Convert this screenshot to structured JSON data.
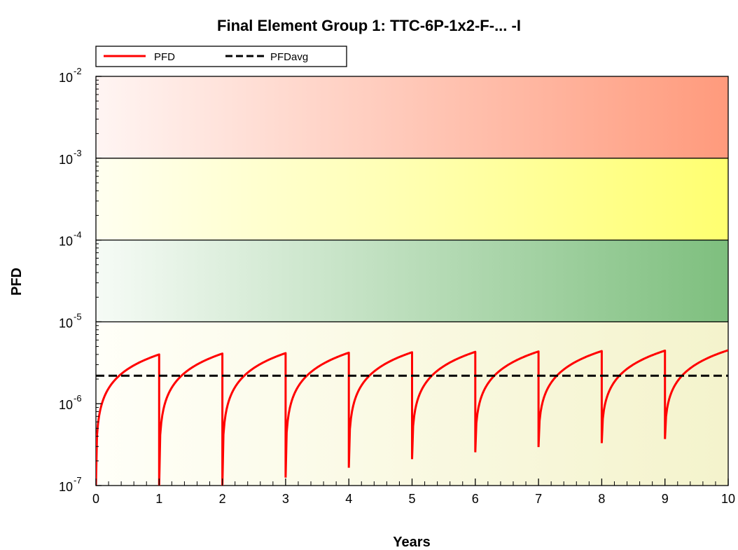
{
  "chart_data": {
    "type": "line",
    "title": "Final Element Group 1: TTC-6P-1x2-F-... -I",
    "xlabel": "Years",
    "ylabel": "PFD",
    "x_scale": "linear",
    "y_scale": "log",
    "xlim": [
      0,
      10
    ],
    "ylim": [
      1e-07,
      0.01
    ],
    "x_ticks": [
      "0",
      "1",
      "2",
      "3",
      "4",
      "5",
      "6",
      "7",
      "8",
      "9",
      "10"
    ],
    "y_ticks": [
      {
        "base": "10",
        "exp": "-7"
      },
      {
        "base": "10",
        "exp": "-6"
      },
      {
        "base": "10",
        "exp": "-5"
      },
      {
        "base": "10",
        "exp": "-4"
      },
      {
        "base": "10",
        "exp": "-3"
      },
      {
        "base": "10",
        "exp": "-2"
      }
    ],
    "legend": {
      "placement": "top-left",
      "entries": [
        {
          "label": "PFD",
          "style": "solid",
          "color": "#ff0000"
        },
        {
          "label": "PFDavg",
          "style": "dashed",
          "color": "#000000"
        }
      ]
    },
    "bands": [
      {
        "from": 0.001,
        "to": 0.01,
        "color_start": "#fff5f3",
        "color_end": "#ff9a7c"
      },
      {
        "from": 0.0001,
        "to": 0.001,
        "color_start": "#fffff0",
        "color_end": "#ffff70"
      },
      {
        "from": 1e-05,
        "to": 0.0001,
        "color_start": "#f6fbf6",
        "color_end": "#7ebf7e"
      },
      {
        "from": 1e-07,
        "to": 1e-05,
        "color_start": "#fffff8",
        "color_end": "#f4f3cc"
      }
    ],
    "series": [
      {
        "name": "PFD",
        "color": "#ff0000",
        "kind": "sawtooth",
        "test_interval_years": 1,
        "cycles": [
          {
            "x_start": 0,
            "x_end": 1,
            "y_start": 1e-07,
            "y_end": 4e-06
          },
          {
            "x_start": 1,
            "x_end": 2,
            "y_start": 1e-07,
            "y_end": 4.1e-06
          },
          {
            "x_start": 2,
            "x_end": 3,
            "y_start": 1e-07,
            "y_end": 4.15e-06
          },
          {
            "x_start": 3,
            "x_end": 4,
            "y_start": 1.25e-07,
            "y_end": 4.2e-06
          },
          {
            "x_start": 4,
            "x_end": 5,
            "y_start": 1.65e-07,
            "y_end": 4.25e-06
          },
          {
            "x_start": 5,
            "x_end": 6,
            "y_start": 2.1e-07,
            "y_end": 4.3e-06
          },
          {
            "x_start": 6,
            "x_end": 7,
            "y_start": 2.55e-07,
            "y_end": 4.35e-06
          },
          {
            "x_start": 7,
            "x_end": 8,
            "y_start": 2.95e-07,
            "y_end": 4.4e-06
          },
          {
            "x_start": 8,
            "x_end": 9,
            "y_start": 3.3e-07,
            "y_end": 4.45e-06
          },
          {
            "x_start": 9,
            "x_end": 10,
            "y_start": 3.7e-07,
            "y_end": 4.5e-06
          }
        ]
      },
      {
        "name": "PFDavg",
        "color": "#000000",
        "kind": "constant",
        "x": [
          0,
          10
        ],
        "y": [
          2.2e-06,
          2.2e-06
        ]
      }
    ]
  }
}
